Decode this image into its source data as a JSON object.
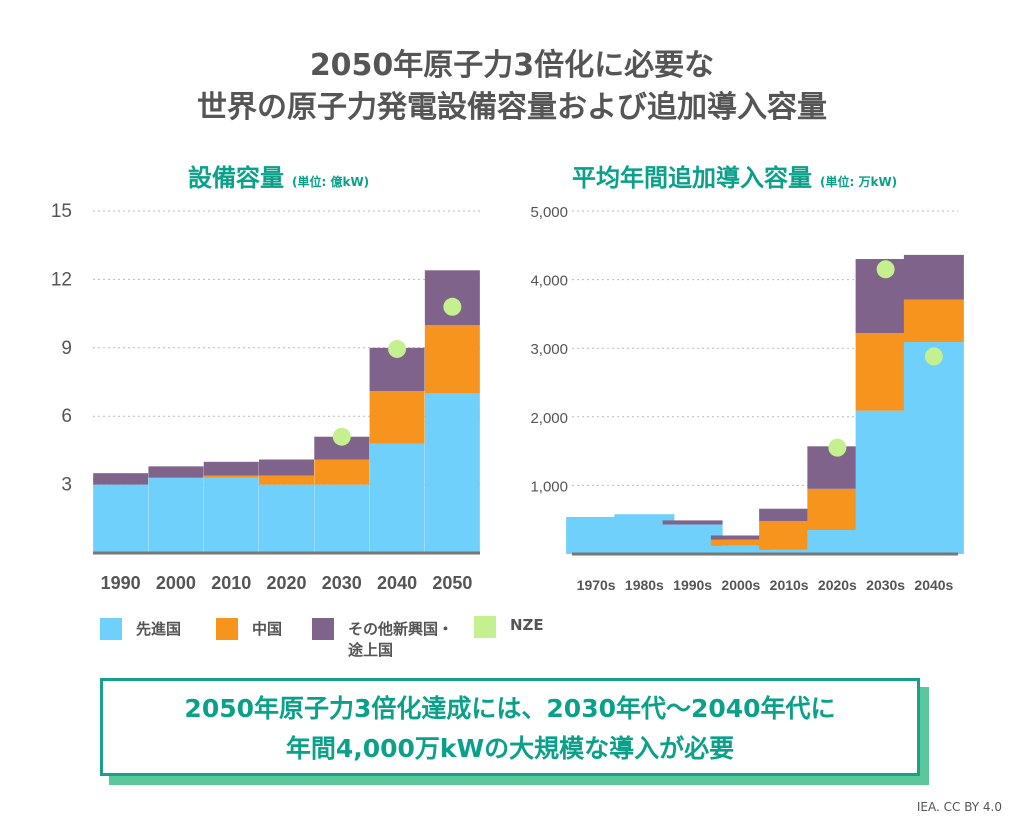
{
  "title": {
    "line1": "2050年原子力3倍化に必要な",
    "line2": "世界の原子力発電設備容量および追加導入容量"
  },
  "colors": {
    "advanced": "#6fd0fb",
    "china": "#f7941d",
    "other": "#80638a",
    "nze": "#c5f08f"
  },
  "legend": [
    "先進国",
    "中国",
    "その他新興国・途上国",
    "NZE"
  ],
  "legend_other_lines": [
    "その他新興国・",
    "途上国"
  ],
  "conclusion": {
    "line1": "2050年原子力3倍化達成には、2030年代〜2040年代に",
    "line2": "年間4,000万kWの大規模な導入が必要"
  },
  "source": "IEA. CC BY 4.0",
  "chart_data": [
    {
      "type": "bar",
      "stacked": true,
      "title": "設備容量",
      "unit": "(単位: 億kW)",
      "ylim": [
        0,
        15
      ],
      "yticks": [
        3,
        6,
        9,
        12,
        15
      ],
      "ytick_labels": [
        "3",
        "6",
        "9",
        "12",
        "15"
      ],
      "grid": true,
      "categories": [
        "1990",
        "2000",
        "2010",
        "2020",
        "2030",
        "2040",
        "2050"
      ],
      "series": [
        {
          "name": "先進国",
          "values": [
            3.0,
            3.3,
            3.3,
            3.0,
            3.0,
            4.8,
            7.0
          ]
        },
        {
          "name": "中国",
          "values": [
            0,
            0,
            0.1,
            0.4,
            1.1,
            2.3,
            3.0
          ]
        },
        {
          "name": "その他新興国・途上国",
          "values": [
            0.5,
            0.5,
            0.6,
            0.7,
            1.0,
            1.9,
            2.4
          ]
        }
      ],
      "nze": [
        null,
        null,
        null,
        null,
        5.1,
        8.95,
        10.8
      ]
    },
    {
      "type": "bar",
      "stacked": true,
      "title": "平均年間追加導入容量",
      "unit": "(単位: 万kW)",
      "ylim": [
        0,
        5000
      ],
      "yticks": [
        1000,
        2000,
        3000,
        4000,
        5000
      ],
      "ytick_labels": [
        "1,000",
        "2,000",
        "3,000",
        "4,000",
        "5,000"
      ],
      "grid": true,
      "categories": [
        "1970s",
        "1980s",
        "1990s",
        "2000s",
        "2010s",
        "2020s",
        "2030s",
        "2040s"
      ],
      "series": [
        {
          "name": "先進国",
          "values": [
            540,
            580,
            430,
            120,
            60,
            350,
            2090,
            3090
          ]
        },
        {
          "name": "中国",
          "values": [
            0,
            0,
            0,
            90,
            420,
            600,
            1130,
            620
          ]
        },
        {
          "name": "その他新興国・途上国",
          "values": [
            0,
            0,
            60,
            60,
            180,
            620,
            1080,
            650
          ]
        }
      ],
      "nze": [
        null,
        null,
        null,
        null,
        null,
        1550,
        4150,
        2880
      ]
    }
  ]
}
